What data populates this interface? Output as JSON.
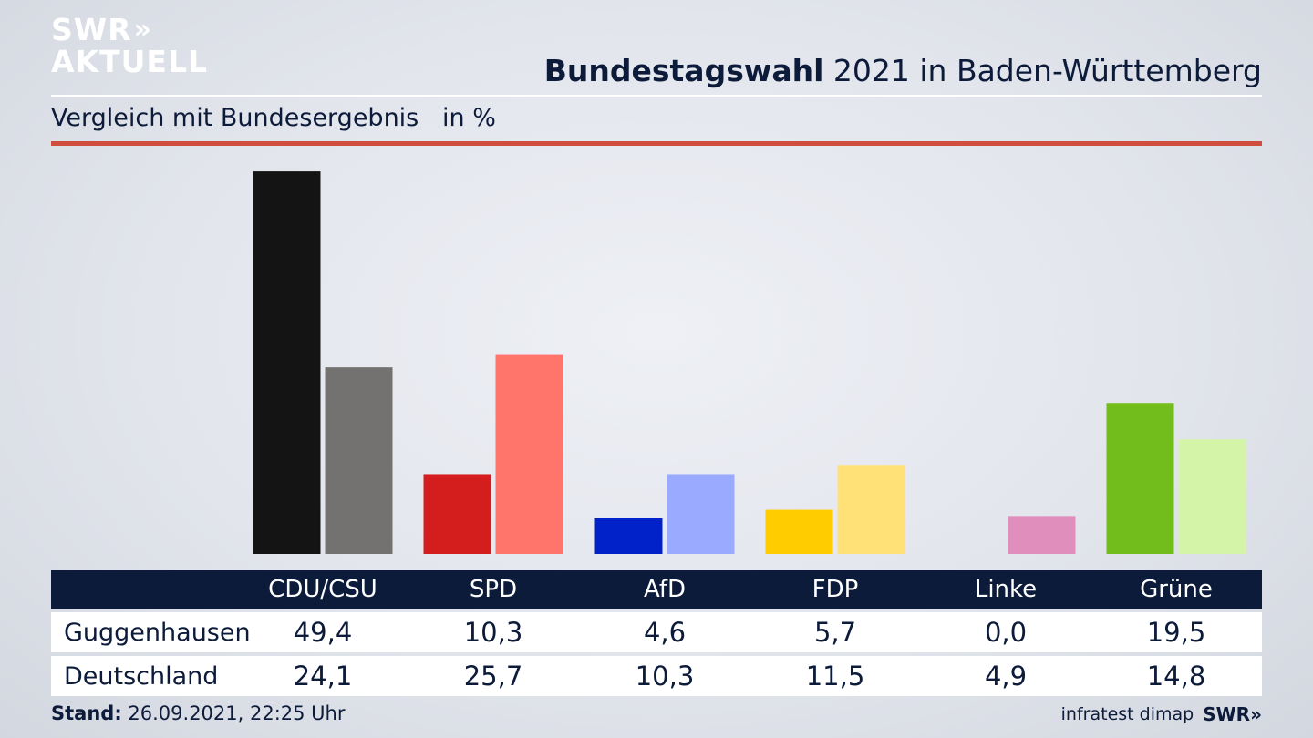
{
  "brand": {
    "line1": "SWR",
    "line1_arrows": "»",
    "line2": "AKTUELL"
  },
  "header": {
    "title_bold": "Bundestagswahl",
    "title_rest": " 2021 in Baden-Württemberg",
    "subtitle": "Vergleich mit Bundesergebnis   in %"
  },
  "chart_data": {
    "type": "bar",
    "categories": [
      "CDU/CSU",
      "SPD",
      "AfD",
      "FDP",
      "Linke",
      "Grüne"
    ],
    "series": [
      {
        "name": "Guggenhausen",
        "values": [
          49.4,
          10.3,
          4.6,
          5.7,
          0.0,
          19.5
        ],
        "colors": [
          "#141414",
          "#d41e1e",
          "#0022c8",
          "#ffcc00",
          "#be2c74",
          "#72bd1c"
        ]
      },
      {
        "name": "Deutschland",
        "values": [
          24.1,
          25.7,
          10.3,
          11.5,
          4.9,
          14.8
        ],
        "colors": [
          "#747270",
          "#ff756c",
          "#9aaaff",
          "#ffe178",
          "#e08ebc",
          "#d4f5a8"
        ]
      }
    ],
    "ylim": [
      0,
      50
    ]
  },
  "table": {
    "headers": [
      "CDU/CSU",
      "SPD",
      "AfD",
      "FDP",
      "Linke",
      "Grüne"
    ],
    "rows": [
      {
        "label": "Guggenhausen",
        "values": [
          "49,4",
          "10,3",
          "4,6",
          "5,7",
          "0,0",
          "19,5"
        ]
      },
      {
        "label": "Deutschland",
        "values": [
          "24,1",
          "25,7",
          "10,3",
          "11,5",
          "4,9",
          "14,8"
        ]
      }
    ]
  },
  "footer": {
    "stand_label": "Stand:",
    "stand_value": " 26.09.2021, 22:25 Uhr",
    "source": "infratest dimap",
    "brand": "SWR»"
  }
}
